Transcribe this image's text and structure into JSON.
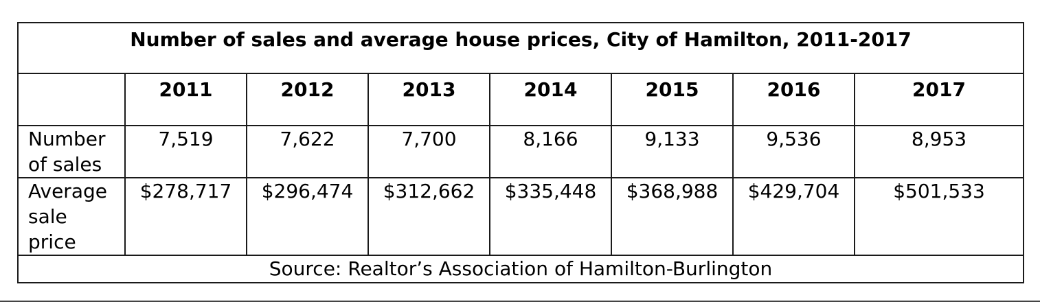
{
  "table": {
    "title": "Number of sales and average house prices, City of Hamilton, 2011-2017",
    "years": [
      "2011",
      "2012",
      "2013",
      "2014",
      "2015",
      "2016",
      "2017"
    ],
    "rows": [
      {
        "label_lines": [
          "Number",
          "of sales"
        ],
        "values": [
          "7,519",
          "7,622",
          "7,700",
          "8,166",
          "9,133",
          "9,536",
          "8,953"
        ]
      },
      {
        "label_lines": [
          "Average",
          "sale",
          "price"
        ],
        "values": [
          "$278,717",
          "$296,474",
          "$312,662",
          "$335,448",
          "$368,988",
          "$429,704",
          "$501,533"
        ]
      }
    ],
    "source": "Source:  Realtor’s Association of Hamilton-Burlington"
  }
}
